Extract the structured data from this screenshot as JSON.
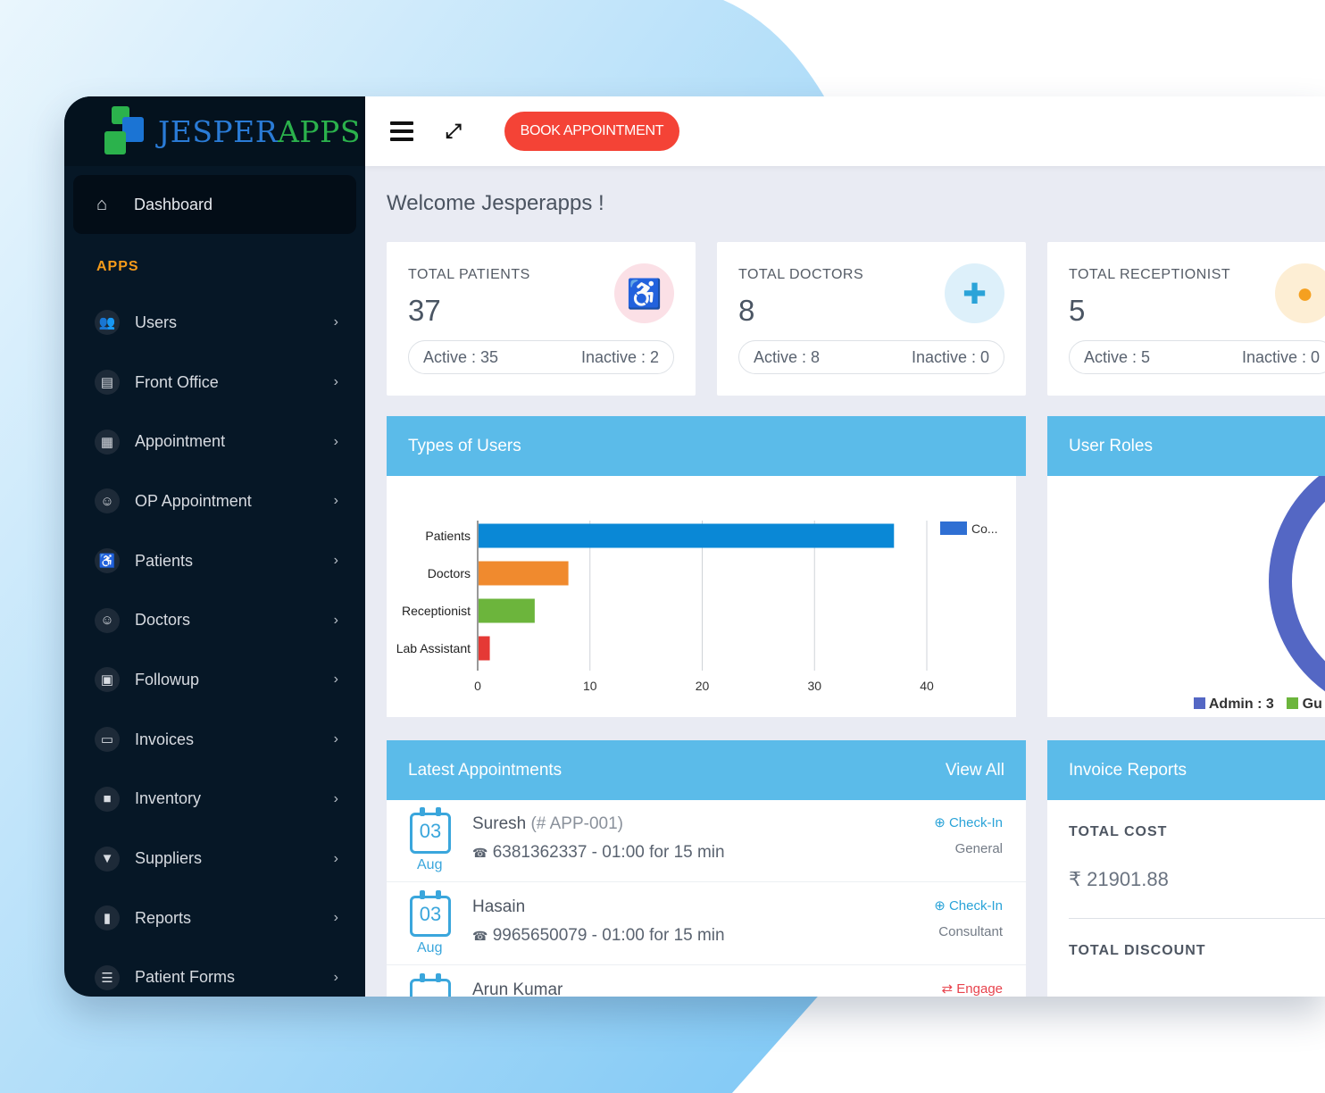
{
  "brand": {
    "name_part1": "JESPER",
    "name_part2": "APPS"
  },
  "sidebar": {
    "dashboard_label": "Dashboard",
    "section_label": "APPS",
    "items": [
      {
        "label": "Users",
        "icon": "users-icon"
      },
      {
        "label": "Front Office",
        "icon": "building-icon"
      },
      {
        "label": "Appointment",
        "icon": "calendar-icon"
      },
      {
        "label": "OP Appointment",
        "icon": "doctor-icon"
      },
      {
        "label": "Patients",
        "icon": "wheelchair-icon"
      },
      {
        "label": "Doctors",
        "icon": "doctor-icon"
      },
      {
        "label": "Followup",
        "icon": "contact-book-icon"
      },
      {
        "label": "Invoices",
        "icon": "credit-card-icon"
      },
      {
        "label": "Inventory",
        "icon": "archive-icon"
      },
      {
        "label": "Suppliers",
        "icon": "basket-icon"
      },
      {
        "label": "Reports",
        "icon": "file-icon"
      },
      {
        "label": "Patient Forms",
        "icon": "list-icon"
      }
    ]
  },
  "header": {
    "book_button": "BOOK APPOINTMENT"
  },
  "welcome": "Welcome Jesperapps !",
  "stats": [
    {
      "title": "TOTAL PATIENTS",
      "value": "37",
      "active": "Active : 35",
      "inactive": "Inactive : 2",
      "icon": "wheelchair-icon",
      "icon_color": "#e8434d",
      "badge_bg": "#fbe0e6"
    },
    {
      "title": "TOTAL DOCTORS",
      "value": "8",
      "active": "Active : 8",
      "inactive": "Inactive : 0",
      "icon": "medkit-icon",
      "icon_color": "#2aa3d8",
      "badge_bg": "#ddf0fa"
    },
    {
      "title": "TOTAL RECEPTIONIST",
      "value": "5",
      "active": "Active : 5",
      "inactive": "Inactive : 0",
      "icon": "user-icon",
      "icon_color": "#f5a020",
      "badge_bg": "#fdeed4"
    }
  ],
  "types_panel": {
    "title": "Types of Users"
  },
  "roles_panel": {
    "title": "User Roles",
    "legend": [
      "Admin : 3",
      "Gu"
    ]
  },
  "appointments_panel": {
    "title": "Latest Appointments",
    "view_all": "View All"
  },
  "appointments": [
    {
      "day": "03",
      "month": "Aug",
      "name": "Suresh",
      "id": "(# APP-001)",
      "phone": "6381362337 - 01:00 for 15 min",
      "status": "Check-In",
      "status_color": "#2aa3d8",
      "type": "General"
    },
    {
      "day": "03",
      "month": "Aug",
      "name": "Hasain",
      "id": "",
      "phone": "9965650079 - 01:00 for 15 min",
      "status": "Check-In",
      "status_color": "#2aa3d8",
      "type": "Consultant"
    },
    {
      "day": "",
      "month": "",
      "name": "Arun Kumar",
      "id": "",
      "phone": "",
      "status": "Engage",
      "status_color": "#e8434d",
      "type": ""
    }
  ],
  "invoice_panel": {
    "title": "Invoice Reports",
    "total_cost_label": "TOTAL COST",
    "total_cost_value": "₹ 21901.88",
    "total_discount_label": "TOTAL DISCOUNT"
  },
  "chart_data": {
    "type": "bar",
    "orientation": "horizontal",
    "categories": [
      "Patients",
      "Doctors",
      "Receptionist",
      "Lab Assistant"
    ],
    "values": [
      37,
      8,
      5,
      1
    ],
    "colors": [
      "#0a88d6",
      "#f08a2e",
      "#6cb53c",
      "#e53935"
    ],
    "xticks": [
      "0",
      "10",
      "20",
      "30",
      "40"
    ],
    "xlim": [
      0,
      40
    ],
    "legend": [
      {
        "label": "Co...",
        "color": "#2f6fd3"
      }
    ]
  }
}
